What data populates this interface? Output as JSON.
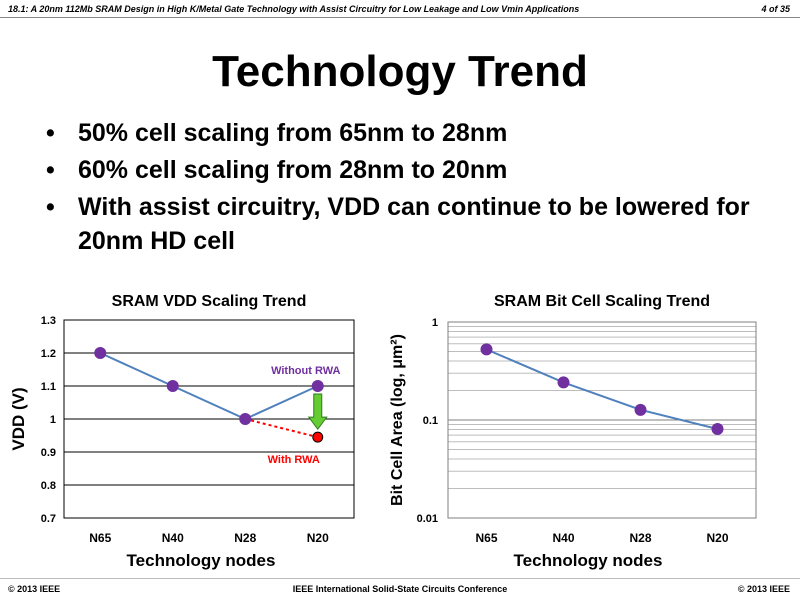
{
  "header": {
    "title": "18.1: A 20nm 112Mb SRAM Design in High K/Metal Gate Technology with Assist Circuitry for Low Leakage and Low Vmin Applications",
    "page": "4 of 35"
  },
  "slide": {
    "title": "Technology Trend",
    "bullets": [
      "50% cell scaling from 65nm to 28nm",
      "60% cell scaling from 28nm to 20nm",
      "With assist circuitry, VDD can continue to be lowered for 20nm HD cell"
    ]
  },
  "colors": {
    "line": "#4f81bd",
    "marker": "#7030a0",
    "rwa_marker": "#ff0000",
    "without_label": "#7030a0",
    "with_label": "#ff0000",
    "arrow": "#66cc33"
  },
  "chart_data": [
    {
      "type": "line",
      "title": "SRAM VDD Scaling Trend",
      "xlabel": "Technology nodes",
      "ylabel": "VDD (V)",
      "categories": [
        "N65",
        "N40",
        "N28",
        "N20"
      ],
      "values": [
        1.2,
        1.1,
        1.0,
        1.1
      ],
      "ylim": [
        0.7,
        1.3
      ],
      "yticks": [
        "0.7",
        "0.8",
        "0.9",
        "1",
        "1.1",
        "1.2",
        "1.3"
      ],
      "grid": true,
      "rwa_point": {
        "category": "N20",
        "value": 0.945
      },
      "annotations": {
        "without": "Without RWA",
        "with": "With RWA"
      }
    },
    {
      "type": "line",
      "title": "SRAM Bit Cell Scaling Trend",
      "xlabel": "Technology nodes",
      "ylabel": "Bit Cell Area (log, μm²)",
      "categories": [
        "N65",
        "N40",
        "N28",
        "N20"
      ],
      "values": [
        0.525,
        0.242,
        0.127,
        0.081
      ],
      "ylim": [
        0.01,
        1
      ],
      "yscale": "log",
      "yticks": [
        "0.01",
        "0.1",
        "1"
      ],
      "grid": true
    }
  ],
  "footer": {
    "left": "© 2013 IEEE",
    "center": "IEEE International Solid-State Circuits Conference",
    "right": "© 2013 IEEE"
  }
}
